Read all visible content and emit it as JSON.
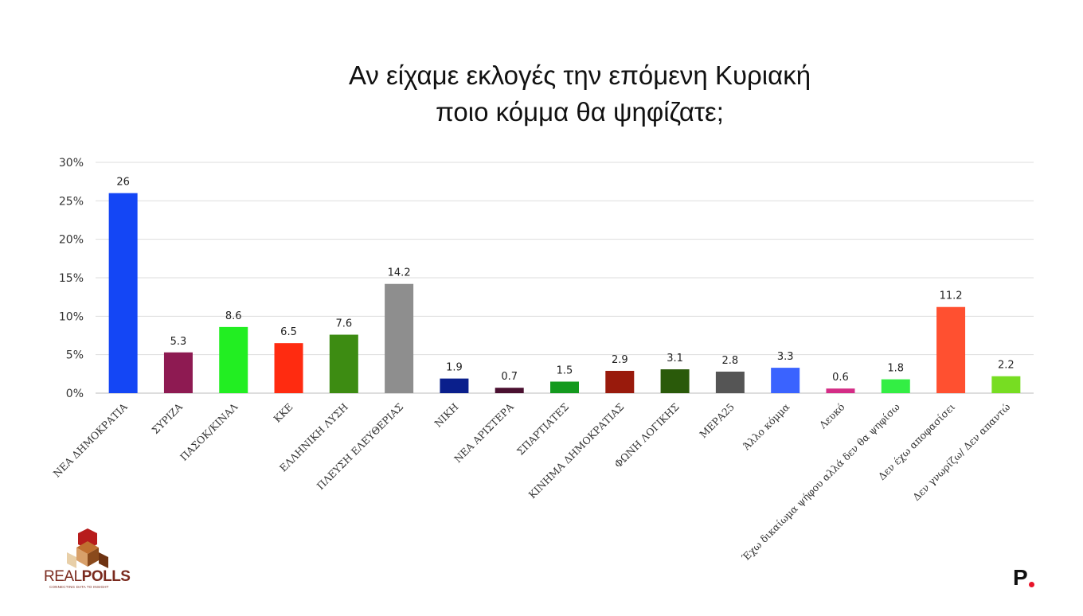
{
  "chart_data": {
    "type": "bar",
    "title": [
      "Αν είχαμε εκλογές την επόμενη Κυριακή",
      "ποιο κόμμα θα ψηφίζατε;"
    ],
    "xlabel": "",
    "ylabel": "",
    "ylim": [
      0,
      30
    ],
    "yticks": [
      "0%",
      "5%",
      "10%",
      "15%",
      "20%",
      "25%",
      "30%"
    ],
    "grid": true,
    "legend": "none",
    "categories": [
      "ΝΕΑ ΔΗΜΟΚΡΑΤΙΑ",
      "ΣΥΡΙΖΑ",
      "ΠΑΣΟΚ/ΚΙΝΑΛ",
      "ΚΚΕ",
      "ΕΛΛΗΝΙΚΗ ΛΥΣΗ",
      "ΠΛΕΥΣΗ ΕΛΕΥΘΕΡΙΑΣ",
      "ΝΙΚΗ",
      "ΝΕΑ ΑΡΙΣΤΕΡΑ",
      "ΣΠΑΡΤΙΑΤΕΣ",
      "ΚΙΝΗΜΑ ΔΗΜΟΚΡΑΤΙΑΣ",
      "ΦΩΝΗ ΛΟΓΙΚΗΣ",
      "ΜΕΡΑ25",
      "Άλλο κόμμα",
      "Λευκό",
      "Έχω δικαίωμα ψήφου αλλά δεν θα ψηφίσω",
      "Δεν έχω αποφασίσει",
      "Δεν γνωρίζω/ Δεν απαντώ"
    ],
    "values": [
      26,
      5.3,
      8.6,
      6.5,
      7.6,
      14.2,
      1.9,
      0.7,
      1.5,
      2.9,
      3.1,
      2.8,
      3.3,
      0.6,
      1.8,
      11.2,
      2.2
    ],
    "value_labels": [
      "26",
      "5.3",
      "8.6",
      "6.5",
      "7.6",
      "14.2",
      "1.9",
      "0.7",
      "1.5",
      "2.9",
      "3.1",
      "2.8",
      "3.3",
      "0.6",
      "1.8",
      "11.2",
      "2.2"
    ],
    "colors": [
      "#1446f5",
      "#8e1a52",
      "#22ee22",
      "#ff2b10",
      "#3d8c12",
      "#8e8e8e",
      "#0a1f8c",
      "#4a1030",
      "#149a1e",
      "#991a0c",
      "#2a5a0a",
      "#555555",
      "#3a63ff",
      "#d42c86",
      "#33ee44",
      "#ff5030",
      "#77dd22"
    ]
  },
  "logo": {
    "text_real": "REAL",
    "text_polls": "POLLS",
    "tagline": "CONNECTING DATA TO INSIGHT"
  },
  "brand": {
    "mark": "P"
  }
}
